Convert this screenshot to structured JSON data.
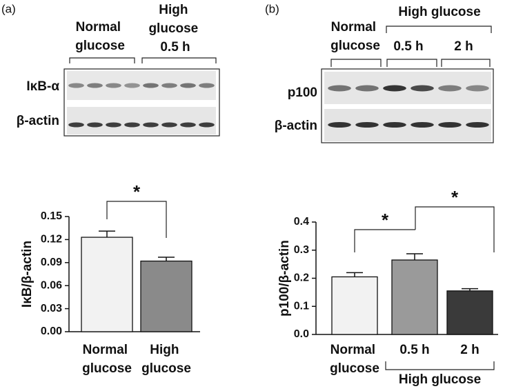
{
  "panel_labels": [
    "(a)",
    "(b)"
  ],
  "blots": [
    {
      "groups": [
        "Normal glucose",
        "High glucose 0.5 h"
      ],
      "rows": [
        "IκB-α",
        "β-actin"
      ]
    },
    {
      "groups": [
        "Normal glucose",
        "High glucose",
        "0.5 h",
        "2 h"
      ],
      "rows": [
        "p100",
        "β-actin"
      ]
    }
  ],
  "chart_data": [
    {
      "type": "bar",
      "ylabel": "IκB/β-actin",
      "categories": [
        "Normal glucose",
        "High glucose"
      ],
      "values": [
        0.123,
        0.092
      ],
      "errors": [
        0.008,
        0.005
      ],
      "colors": [
        "#f2f2f2",
        "#8a8a8a"
      ],
      "ylim": [
        0,
        0.15
      ],
      "yticks": [
        {
          "value": 0,
          "label": "0.00"
        },
        0.03,
        0.06,
        0.09,
        0.12,
        0.15
      ],
      "annotations": [
        "*"
      ]
    },
    {
      "type": "bar",
      "ylabel": "p100/β-actin",
      "categories": [
        "Normal glucose",
        "0.5 h",
        "2 h"
      ],
      "group_label": "High glucose",
      "values": [
        0.205,
        0.265,
        0.155
      ],
      "errors": [
        0.015,
        0.022,
        0.008
      ],
      "colors": [
        "#f2f2f2",
        "#9a9a9a",
        "#3a3a3a"
      ],
      "ylim": [
        0,
        0.4
      ],
      "yticks": [
        {
          "value": 0,
          "label": "0.0"
        },
        0.1,
        0.2,
        0.3,
        0.4
      ],
      "annotations": [
        "*",
        "*"
      ]
    }
  ]
}
